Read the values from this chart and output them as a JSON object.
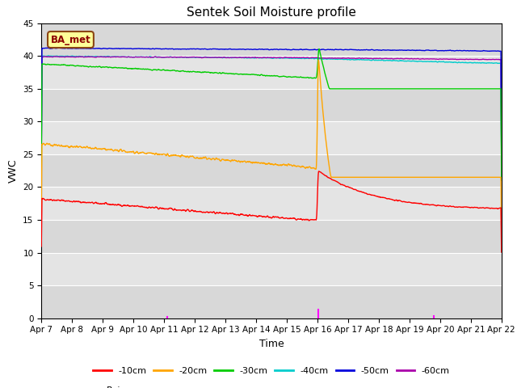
{
  "title": "Sentek Soil Moisture profile",
  "xlabel": "Time",
  "ylabel": "VWC",
  "annotation": "BA_met",
  "ylim": [
    0,
    45
  ],
  "xlim": [
    0,
    15
  ],
  "x_tick_labels": [
    "Apr 7",
    "Apr 8",
    "Apr 9",
    "Apr 10",
    "Apr 11",
    "Apr 12",
    "Apr 13",
    "Apr 14",
    "Apr 15",
    "Apr 16",
    "Apr 17",
    "Apr 18",
    "Apr 19",
    "Apr 20",
    "Apr 21",
    "Apr 22"
  ],
  "colors": {
    "-10cm": "#ff0000",
    "-20cm": "#ffa500",
    "-30cm": "#00cc00",
    "-40cm": "#00cccc",
    "-50cm": "#0000dd",
    "-60cm": "#aa00aa",
    "Rain": "#ff00ff"
  },
  "bg_color": "#dcdcdc",
  "title_fontsize": 11,
  "label_fontsize": 9,
  "tick_fontsize": 7.5
}
